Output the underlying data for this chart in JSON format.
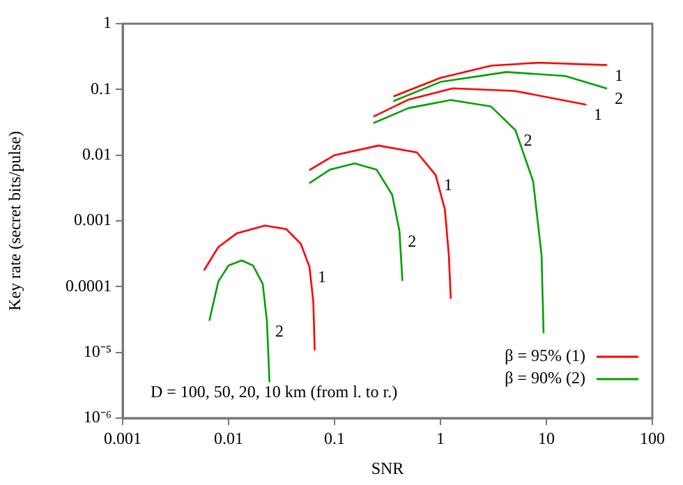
{
  "chart_data": {
    "type": "line",
    "xlabel": "SNR",
    "ylabel": "Key rate (secret bits/pulse)",
    "log": "xy",
    "xlim": [
      0.001,
      100
    ],
    "xticks": [
      0.001,
      0.01,
      0.1,
      1,
      10,
      100
    ],
    "ylim": [
      1e-06,
      1
    ],
    "yticks": [
      {
        "value": 1e-06,
        "label": "10⁻⁶"
      },
      {
        "value": 1e-05,
        "label": "10⁻⁵"
      },
      0.0001,
      0.001,
      0.01,
      0.1,
      1
    ],
    "grid": false,
    "legend": "bottom right",
    "marker": "none",
    "line_style": "solid",
    "series": [
      {
        "name": "β = 95% (1)",
        "color": "#ff0000",
        "x": [
          0.0059,
          0.008,
          0.012,
          0.022,
          0.035,
          0.048,
          0.058,
          0.063,
          0.065
        ],
        "values": [
          0.00018,
          0.0004,
          0.00065,
          0.00085,
          0.00075,
          0.00045,
          0.0002,
          6e-05,
          1.1e-05
        ]
      },
      {
        "name": "β = 90% (2)",
        "color": "#00a000",
        "x": [
          0.0066,
          0.008,
          0.01,
          0.0133,
          0.017,
          0.021,
          0.023,
          0.0243
        ],
        "values": [
          3.1e-05,
          0.00012,
          0.00021,
          0.00025,
          0.00021,
          0.00011,
          3e-05,
          3.6e-06
        ]
      },
      {
        "color": "#ff0000",
        "x": [
          0.0586,
          0.1,
          0.26,
          0.6,
          0.9,
          1.1,
          1.2,
          1.25
        ],
        "values": [
          0.006,
          0.01,
          0.014,
          0.011,
          0.005,
          0.0015,
          0.0003,
          6.7e-05
        ]
      },
      {
        "color": "#00a000",
        "x": [
          0.0586,
          0.09,
          0.155,
          0.25,
          0.35,
          0.41,
          0.437
        ],
        "values": [
          0.0038,
          0.006,
          0.0075,
          0.006,
          0.0025,
          0.0007,
          0.000125
        ]
      },
      {
        "color": "#ff0000",
        "x": [
          0.236,
          0.5,
          1.31,
          5,
          23.4
        ],
        "values": [
          0.039,
          0.07,
          0.104,
          0.095,
          0.059
        ]
      },
      {
        "color": "#00a000",
        "x": [
          0.236,
          0.5,
          1.25,
          3,
          5.1,
          7.5,
          9,
          9.4
        ],
        "values": [
          0.031,
          0.052,
          0.069,
          0.055,
          0.024,
          0.004,
          0.0003,
          2e-05
        ]
      },
      {
        "color": "#ff0000",
        "x": [
          0.365,
          1,
          3,
          8.5,
          36.8
        ],
        "values": [
          0.079,
          0.15,
          0.23,
          0.255,
          0.235
        ]
      },
      {
        "color": "#00a000",
        "x": [
          0.365,
          1,
          4.2,
          15,
          36.8
        ],
        "values": [
          0.067,
          0.13,
          0.184,
          0.16,
          0.104
        ]
      }
    ],
    "annotations": [
      {
        "text": "1",
        "x": 36.8,
        "y": 0.235
      },
      {
        "text": "2",
        "x": 36.8,
        "y": 0.104
      },
      {
        "text": "1",
        "x": 23.4,
        "y": 0.059
      },
      {
        "text": "2",
        "x": 5.1,
        "y": 0.024
      },
      {
        "text": "1",
        "x": 0.9,
        "y": 0.005
      },
      {
        "text": "2",
        "x": 0.41,
        "y": 0.0007
      },
      {
        "text": "1",
        "x": 0.058,
        "y": 0.0002
      },
      {
        "text": "2",
        "x": 0.023,
        "y": 3e-05
      },
      "D = 100, 50, 20, 10 km (from l. to r.)"
    ]
  }
}
